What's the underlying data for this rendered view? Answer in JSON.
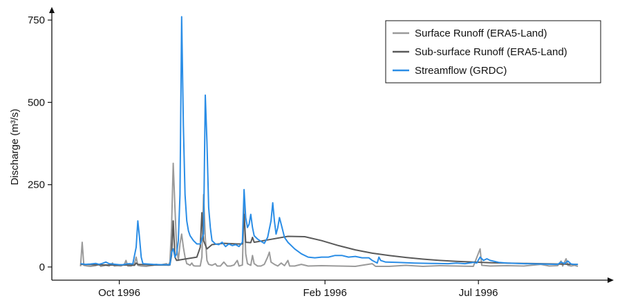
{
  "chart_data": {
    "type": "line",
    "title": "",
    "ylabel": "Discharge (m³/s)",
    "xlabel": "",
    "ylim": [
      -40,
      790
    ],
    "x_range_days": [
      -40,
      290
    ],
    "yticks": [
      0,
      250,
      500,
      750
    ],
    "ytick_labels": [
      "0",
      "250",
      "500",
      "750"
    ],
    "xticks": [
      {
        "day": 0,
        "label": "Oct 1996"
      },
      {
        "day": 122,
        "label": "Feb 1996"
      },
      {
        "day": 213,
        "label": "Jul 1996"
      }
    ],
    "legend": {
      "position": "top-right",
      "entries": [
        "Surface Runoff (ERA5-Land)",
        "Sub-surface Runoff (ERA5-Land)",
        "Streamflow (GRDC)"
      ]
    },
    "grid": false,
    "series": [
      {
        "name": "Surface Runoff (ERA5-Land)",
        "color": "#9a9a9a",
        "points": [
          [
            -23,
            2
          ],
          [
            -22,
            75
          ],
          [
            -21,
            5
          ],
          [
            -19,
            3
          ],
          [
            -17,
            2
          ],
          [
            -14,
            4
          ],
          [
            -12,
            8
          ],
          [
            -11,
            2
          ],
          [
            -8,
            5
          ],
          [
            -6,
            3
          ],
          [
            -4,
            12
          ],
          [
            -3,
            3
          ],
          [
            -1,
            4
          ],
          [
            1,
            3
          ],
          [
            3,
            8
          ],
          [
            4,
            20
          ],
          [
            5,
            3
          ],
          [
            7,
            3
          ],
          [
            9,
            10
          ],
          [
            10,
            30
          ],
          [
            11,
            5
          ],
          [
            13,
            3
          ],
          [
            16,
            2
          ],
          [
            20,
            5
          ],
          [
            22,
            8
          ],
          [
            24,
            6
          ],
          [
            26,
            8
          ],
          [
            28,
            10
          ],
          [
            29,
            5
          ],
          [
            30,
            15
          ],
          [
            31,
            120
          ],
          [
            32,
            315
          ],
          [
            33,
            180
          ],
          [
            34,
            60
          ],
          [
            35,
            20
          ],
          [
            36,
            70
          ],
          [
            37,
            100
          ],
          [
            38,
            60
          ],
          [
            39,
            30
          ],
          [
            40,
            10
          ],
          [
            41,
            8
          ],
          [
            42,
            5
          ],
          [
            43,
            12
          ],
          [
            44,
            4
          ],
          [
            45,
            3
          ],
          [
            48,
            3
          ],
          [
            49,
            30
          ],
          [
            50,
            220
          ],
          [
            51,
            90
          ],
          [
            52,
            20
          ],
          [
            53,
            8
          ],
          [
            55,
            5
          ],
          [
            57,
            10
          ],
          [
            58,
            3
          ],
          [
            60,
            3
          ],
          [
            62,
            15
          ],
          [
            64,
            3
          ],
          [
            66,
            3
          ],
          [
            68,
            6
          ],
          [
            70,
            20
          ],
          [
            71,
            3
          ],
          [
            73,
            6
          ],
          [
            74,
            190
          ],
          [
            75,
            40
          ],
          [
            76,
            10
          ],
          [
            78,
            5
          ],
          [
            79,
            35
          ],
          [
            80,
            10
          ],
          [
            82,
            3
          ],
          [
            84,
            3
          ],
          [
            86,
            8
          ],
          [
            88,
            30
          ],
          [
            89,
            45
          ],
          [
            90,
            15
          ],
          [
            92,
            8
          ],
          [
            94,
            3
          ],
          [
            96,
            12
          ],
          [
            98,
            4
          ],
          [
            100,
            20
          ],
          [
            101,
            3
          ],
          [
            104,
            3
          ],
          [
            108,
            8
          ],
          [
            112,
            3
          ],
          [
            120,
            4
          ],
          [
            130,
            3
          ],
          [
            140,
            2
          ],
          [
            150,
            10
          ],
          [
            152,
            2
          ],
          [
            160,
            2
          ],
          [
            170,
            5
          ],
          [
            180,
            2
          ],
          [
            190,
            4
          ],
          [
            200,
            3
          ],
          [
            210,
            2
          ],
          [
            214,
            55
          ],
          [
            215,
            5
          ],
          [
            220,
            3
          ],
          [
            230,
            4
          ],
          [
            240,
            3
          ],
          [
            250,
            8
          ],
          [
            255,
            3
          ],
          [
            260,
            4
          ],
          [
            262,
            18
          ],
          [
            263,
            3
          ],
          [
            265,
            25
          ],
          [
            266,
            5
          ],
          [
            268,
            3
          ],
          [
            270,
            5
          ],
          [
            272,
            2
          ]
        ]
      },
      {
        "name": "Sub-surface Runoff (ERA5-Land)",
        "color": "#595959",
        "points": [
          [
            -23,
            8
          ],
          [
            -15,
            7
          ],
          [
            -5,
            6
          ],
          [
            5,
            6
          ],
          [
            9,
            5
          ],
          [
            10,
            12
          ],
          [
            11,
            8
          ],
          [
            20,
            6
          ],
          [
            30,
            6
          ],
          [
            31,
            35
          ],
          [
            32,
            140
          ],
          [
            33,
            30
          ],
          [
            34,
            20
          ],
          [
            40,
            25
          ],
          [
            46,
            30
          ],
          [
            48,
            60
          ],
          [
            49,
            165
          ],
          [
            50,
            80
          ],
          [
            52,
            55
          ],
          [
            55,
            68
          ],
          [
            62,
            72
          ],
          [
            70,
            70
          ],
          [
            73,
            70
          ],
          [
            74,
            160
          ],
          [
            75,
            75
          ],
          [
            78,
            74
          ],
          [
            79,
            90
          ],
          [
            80,
            75
          ],
          [
            90,
            84
          ],
          [
            100,
            93
          ],
          [
            110,
            92
          ],
          [
            120,
            80
          ],
          [
            130,
            65
          ],
          [
            140,
            52
          ],
          [
            150,
            42
          ],
          [
            160,
            35
          ],
          [
            170,
            29
          ],
          [
            180,
            24
          ],
          [
            190,
            20
          ],
          [
            200,
            17
          ],
          [
            210,
            15
          ],
          [
            220,
            13
          ],
          [
            230,
            12
          ],
          [
            240,
            11
          ],
          [
            250,
            10
          ],
          [
            260,
            9
          ],
          [
            272,
            8
          ]
        ]
      },
      {
        "name": "Streamflow (GRDC)",
        "color": "#2a8de6",
        "points": [
          [
            -23,
            10
          ],
          [
            -20,
            8
          ],
          [
            -17,
            9
          ],
          [
            -14,
            11
          ],
          [
            -12,
            8
          ],
          [
            -10,
            11
          ],
          [
            -8,
            15
          ],
          [
            -6,
            10
          ],
          [
            -4,
            9
          ],
          [
            -2,
            8
          ],
          [
            0,
            7
          ],
          [
            2,
            7
          ],
          [
            4,
            9
          ],
          [
            6,
            10
          ],
          [
            8,
            9
          ],
          [
            10,
            60
          ],
          [
            11,
            140
          ],
          [
            12,
            90
          ],
          [
            13,
            30
          ],
          [
            14,
            10
          ],
          [
            20,
            8
          ],
          [
            25,
            7
          ],
          [
            30,
            7
          ],
          [
            31,
            45
          ],
          [
            32,
            55
          ],
          [
            33,
            30
          ],
          [
            34,
            40
          ],
          [
            35,
            80
          ],
          [
            36,
            220
          ],
          [
            37,
            760
          ],
          [
            38,
            430
          ],
          [
            39,
            220
          ],
          [
            40,
            140
          ],
          [
            41,
            110
          ],
          [
            42,
            95
          ],
          [
            44,
            80
          ],
          [
            46,
            70
          ],
          [
            48,
            70
          ],
          [
            50,
            100
          ],
          [
            51,
            522
          ],
          [
            52,
            380
          ],
          [
            53,
            180
          ],
          [
            54,
            120
          ],
          [
            55,
            80
          ],
          [
            57,
            70
          ],
          [
            59,
            68
          ],
          [
            61,
            75
          ],
          [
            63,
            62
          ],
          [
            65,
            70
          ],
          [
            67,
            65
          ],
          [
            69,
            68
          ],
          [
            71,
            62
          ],
          [
            73,
            75
          ],
          [
            74,
            235
          ],
          [
            75,
            150
          ],
          [
            76,
            120
          ],
          [
            77,
            130
          ],
          [
            78,
            160
          ],
          [
            79,
            120
          ],
          [
            80,
            95
          ],
          [
            82,
            85
          ],
          [
            84,
            78
          ],
          [
            86,
            72
          ],
          [
            88,
            90
          ],
          [
            90,
            140
          ],
          [
            91,
            195
          ],
          [
            92,
            140
          ],
          [
            93,
            100
          ],
          [
            94,
            120
          ],
          [
            95,
            150
          ],
          [
            96,
            130
          ],
          [
            97,
            110
          ],
          [
            98,
            90
          ],
          [
            100,
            75
          ],
          [
            104,
            55
          ],
          [
            108,
            40
          ],
          [
            112,
            30
          ],
          [
            116,
            28
          ],
          [
            120,
            30
          ],
          [
            124,
            30
          ],
          [
            128,
            35
          ],
          [
            132,
            35
          ],
          [
            136,
            30
          ],
          [
            140,
            32
          ],
          [
            144,
            28
          ],
          [
            148,
            28
          ],
          [
            150,
            20
          ],
          [
            153,
            12
          ],
          [
            154,
            30
          ],
          [
            155,
            20
          ],
          [
            158,
            15
          ],
          [
            165,
            14
          ],
          [
            175,
            12
          ],
          [
            185,
            11
          ],
          [
            195,
            10
          ],
          [
            200,
            12
          ],
          [
            205,
            10
          ],
          [
            210,
            14
          ],
          [
            212,
            12
          ],
          [
            214,
            30
          ],
          [
            216,
            20
          ],
          [
            218,
            25
          ],
          [
            220,
            20
          ],
          [
            225,
            14
          ],
          [
            230,
            12
          ],
          [
            240,
            10
          ],
          [
            250,
            9
          ],
          [
            260,
            8
          ],
          [
            262,
            15
          ],
          [
            264,
            10
          ],
          [
            266,
            18
          ],
          [
            268,
            9
          ],
          [
            270,
            8
          ],
          [
            272,
            8
          ]
        ]
      }
    ]
  }
}
